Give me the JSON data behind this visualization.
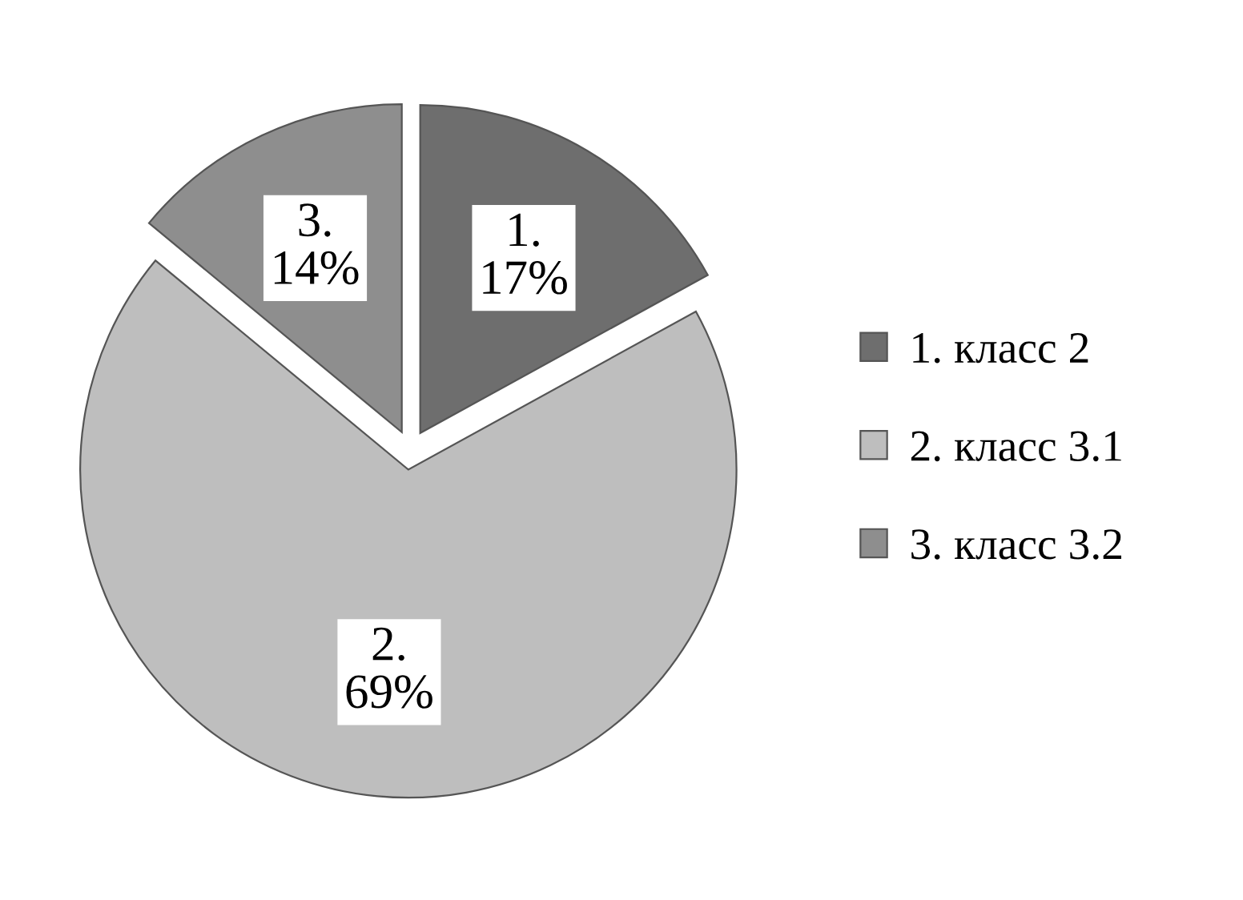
{
  "chart_data": {
    "type": "pie",
    "categories": [
      "1. класс 2",
      "2. класс 3.1",
      "3. класс 3.2"
    ],
    "values": [
      17,
      69,
      14
    ],
    "colors": [
      "#6e6e6e",
      "#bebebe",
      "#8e8e8e"
    ],
    "value_labels": [
      "1.\n17%",
      "2.\n69%",
      "3.\n14%"
    ],
    "legend": "right"
  }
}
